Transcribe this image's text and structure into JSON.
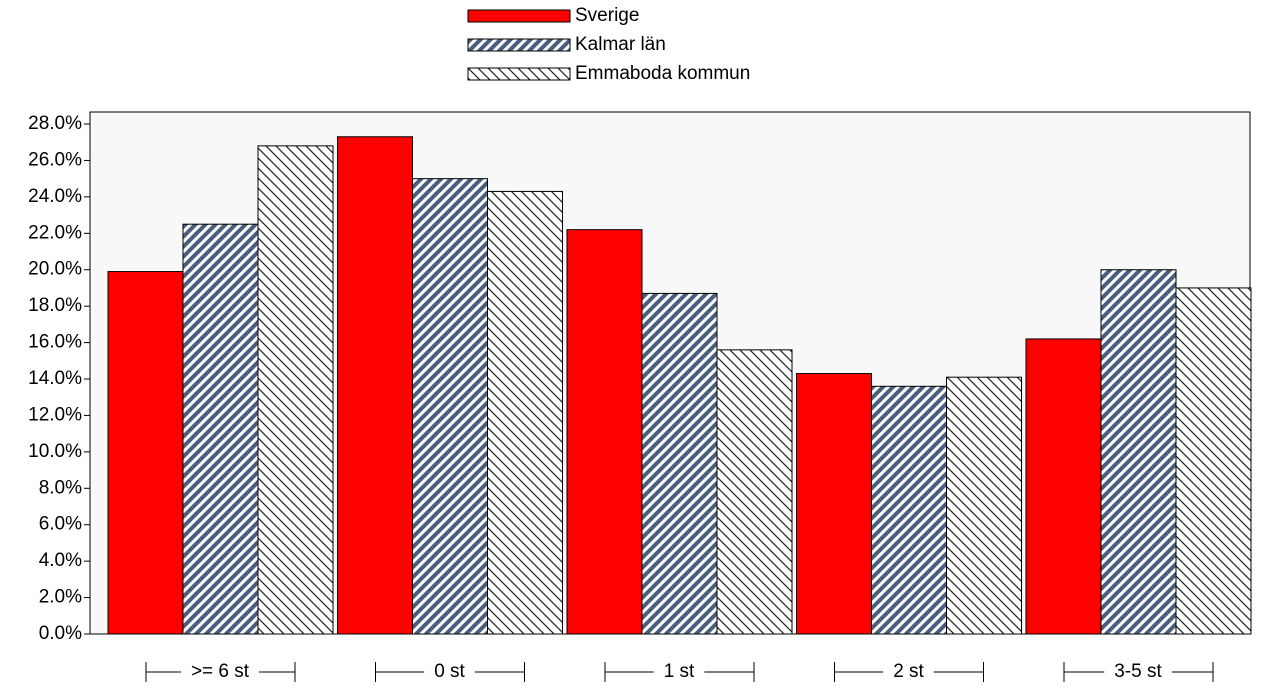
{
  "chart_data": {
    "type": "bar",
    "categories": [
      ">= 6 st",
      "0 st",
      "1 st",
      "2 st",
      "3-5 st"
    ],
    "series": [
      {
        "name": "Sverige",
        "color": "#ff0000",
        "pattern": "solid",
        "values": [
          19.9,
          27.3,
          22.2,
          14.3,
          16.2
        ]
      },
      {
        "name": "Kalmar län",
        "color": "#4a5f7e",
        "pattern": "forward-diagonal",
        "values": [
          22.5,
          25.0,
          18.7,
          13.6,
          20.0
        ]
      },
      {
        "name": "Emmaboda kommun",
        "color": "#222222",
        "pattern": "backward-diagonal",
        "values": [
          26.8,
          24.3,
          15.6,
          14.1,
          19.0
        ]
      }
    ],
    "ylim": [
      0,
      28.66
    ],
    "yticks": [
      {
        "value": 0,
        "label": "0.0%"
      },
      {
        "value": 2,
        "label": "2.0%"
      },
      {
        "value": 4,
        "label": "4.0%"
      },
      {
        "value": 6,
        "label": "6.0%"
      },
      {
        "value": 8,
        "label": "8.0%"
      },
      {
        "value": 10,
        "label": "10.0%"
      },
      {
        "value": 12,
        "label": "12.0%"
      },
      {
        "value": 14,
        "label": "14.0%"
      },
      {
        "value": 16,
        "label": "16.0%"
      },
      {
        "value": 18,
        "label": "18.0%"
      },
      {
        "value": 20,
        "label": "20.0%"
      },
      {
        "value": 22,
        "label": "22.0%"
      },
      {
        "value": 24,
        "label": "24.0%"
      },
      {
        "value": 26,
        "label": "26.0%"
      },
      {
        "value": 28,
        "label": "28.0%"
      }
    ],
    "grid": false
  }
}
